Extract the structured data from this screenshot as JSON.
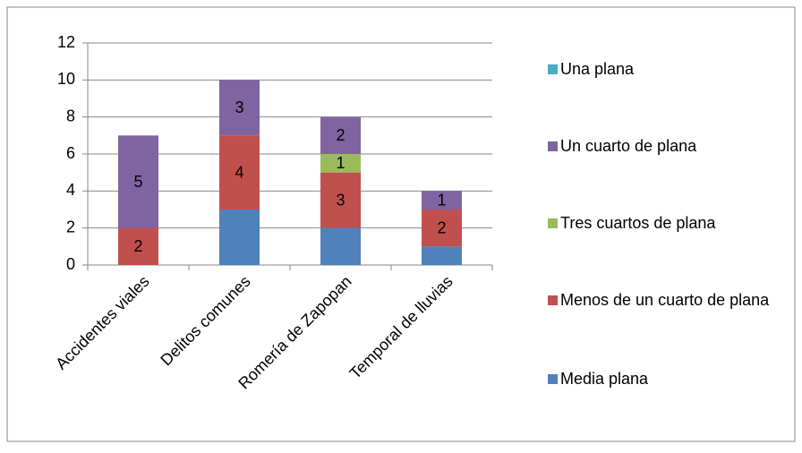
{
  "chart_data": {
    "type": "stacked_bar",
    "categories": [
      "Accidentes viales",
      "Delitos comunes",
      "Romería de Zapopan",
      "Temporal de lluvias"
    ],
    "series": [
      {
        "name": "Media plana",
        "color": "#4f81bd",
        "values": [
          0,
          3,
          2,
          1
        ],
        "labels": false
      },
      {
        "name": "Menos de un cuarto de plana",
        "color": "#c0504d",
        "values": [
          2,
          4,
          3,
          2
        ],
        "labels": true
      },
      {
        "name": "Tres cuartos de plana",
        "color": "#9bbb59",
        "values": [
          0,
          0,
          1,
          0
        ],
        "labels": true
      },
      {
        "name": "Un cuarto de plana",
        "color": "#8064a2",
        "values": [
          5,
          3,
          2,
          1
        ],
        "labels": true
      },
      {
        "name": "Una plana",
        "color": "#4bacc6",
        "values": [
          0,
          0,
          0,
          0
        ],
        "labels": true
      }
    ],
    "ylim": [
      0,
      12
    ],
    "yticks": [
      0,
      2,
      4,
      6,
      8,
      10,
      12
    ],
    "grid": true,
    "legend": "right"
  }
}
